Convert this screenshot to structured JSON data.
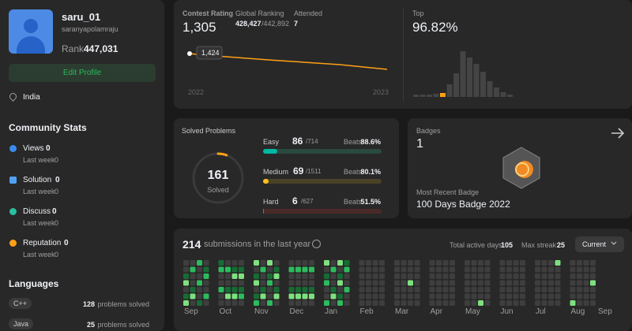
{
  "profile": {
    "name": "saru_01",
    "username": "saranyapolamraju",
    "rank_label": "Rank",
    "rank": "447,031",
    "edit": "Edit Profile",
    "location": "India"
  },
  "community": {
    "title": "Community Stats",
    "items": [
      {
        "label": "Views",
        "value": 0,
        "sub": "Last week",
        "sub_value": 0
      },
      {
        "label": "Solution",
        "value": 0,
        "sub": "Last week",
        "sub_value": 0
      },
      {
        "label": "Discuss",
        "value": 0,
        "sub": "Last week",
        "sub_value": 0
      },
      {
        "label": "Reputation",
        "value": 0,
        "sub": "Last week",
        "sub_value": 0
      }
    ]
  },
  "languages": {
    "title": "Languages",
    "items": [
      {
        "name": "C++",
        "count": 128,
        "suffix": "problems solved"
      },
      {
        "name": "Java",
        "count": 25,
        "suffix": "problems solved"
      }
    ]
  },
  "contest": {
    "rating_label": "Contest Rating",
    "rating": "1,305",
    "ranking_label": "Global Ranking",
    "ranking": "428,427",
    "ranking_total": "/442,892",
    "attended_label": "Attended",
    "attended": 7,
    "point_label": "1,424",
    "x_start": "2022",
    "x_end": "2023",
    "top_label": "Top",
    "top": "96.82%"
  },
  "solved": {
    "title": "Solved Problems",
    "total": 161,
    "total_label": "Solved",
    "levels": [
      {
        "name": "Easy",
        "solved": 86,
        "total": 714,
        "total_label": "/714",
        "beats_label": "Beats",
        "beats": "88.6%",
        "color": "#00b8a3",
        "track": "#2a4a3f"
      },
      {
        "name": "Medium",
        "solved": 69,
        "total": 1511,
        "total_label": "/1511",
        "beats_label": "Beats",
        "beats": "80.1%",
        "color": "#ffc01e",
        "track": "#4a4226"
      },
      {
        "name": "Hard",
        "solved": 6,
        "total": 627,
        "total_label": "/627",
        "beats_label": "Beats",
        "beats": "51.5%",
        "color": "#ef4743",
        "track": "#4a2a28"
      }
    ]
  },
  "badges": {
    "title": "Badges",
    "count": 1,
    "recent_label": "Most Recent Badge",
    "recent": "100 Days Badge 2022"
  },
  "submissions": {
    "count": 214,
    "text": "submissions in the last year",
    "active_label": "Total active days:",
    "active": 105,
    "streak_label": "Max streak:",
    "streak": 25,
    "dropdown": "Current",
    "months": [
      "Sep",
      "Oct",
      "Nov",
      "Dec",
      "Jan",
      "Feb",
      "Mar",
      "Apr",
      "May",
      "Jun",
      "Jul",
      "Aug",
      "Sep"
    ]
  }
}
